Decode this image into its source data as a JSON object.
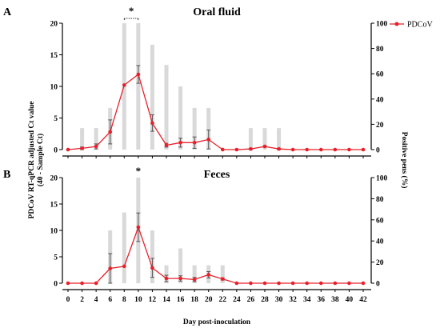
{
  "chart_data": [
    {
      "type": "bar",
      "panel_label": "A",
      "title": "Oral fluid",
      "x": [
        0,
        2,
        4,
        6,
        8,
        10,
        12,
        14,
        16,
        18,
        20,
        22,
        24,
        26,
        28,
        30,
        32,
        34,
        36,
        38,
        40,
        42
      ],
      "xlim": [
        0,
        42
      ],
      "ylim": [
        0,
        20
      ],
      "yticks": [
        0,
        5,
        10,
        15,
        20
      ],
      "y2lim": [
        0,
        100
      ],
      "y2ticks": [
        0,
        20,
        40,
        60,
        80,
        100
      ],
      "legend": {
        "position": "top-right"
      },
      "series": [
        {
          "name": "",
          "kind": "bar",
          "axis": "right",
          "color": "#d9d9d9",
          "values": [
            0,
            17,
            17,
            33,
            100,
            100,
            83,
            67,
            50,
            33,
            33,
            0,
            0,
            17,
            17,
            17,
            0,
            0,
            0,
            0,
            0,
            0
          ]
        },
        {
          "name": "PDCoV",
          "kind": "line",
          "axis": "left",
          "color": "#e8202a",
          "values": [
            0,
            0.2,
            0.5,
            2.8,
            10.2,
            11.9,
            4.2,
            0.7,
            1.1,
            1.1,
            1.6,
            0,
            0,
            0.1,
            0.5,
            0.1,
            0,
            0,
            0,
            0,
            0,
            0
          ],
          "error": [
            0,
            0.2,
            0.4,
            1.9,
            0,
            1.4,
            1.3,
            0.3,
            0.7,
            0.9,
            1.5,
            0,
            0,
            0.1,
            0.1,
            0.1,
            0,
            0,
            0,
            0,
            0,
            0
          ]
        }
      ],
      "annotations": [
        {
          "text": "*",
          "x_start": 8,
          "x_end": 10
        }
      ]
    },
    {
      "type": "bar",
      "panel_label": "B",
      "title": "Feces",
      "x": [
        0,
        2,
        4,
        6,
        8,
        10,
        12,
        14,
        16,
        18,
        20,
        22,
        24,
        26,
        28,
        30,
        32,
        34,
        36,
        38,
        40,
        42
      ],
      "xlim": [
        0,
        42
      ],
      "ylim": [
        0,
        20
      ],
      "yticks": [
        0,
        5,
        10,
        15,
        20
      ],
      "y2lim": [
        0,
        100
      ],
      "y2ticks": [
        0,
        20,
        40,
        60,
        80,
        100
      ],
      "series": [
        {
          "name": "",
          "kind": "bar",
          "axis": "right",
          "color": "#d9d9d9",
          "values": [
            0,
            0,
            0,
            50,
            67,
            100,
            50,
            17,
            33,
            17,
            17,
            17,
            0,
            0,
            0,
            0,
            0,
            0,
            0,
            0,
            0,
            0
          ]
        },
        {
          "name": "PDCoV",
          "kind": "line",
          "axis": "left",
          "color": "#e8202a",
          "values": [
            0,
            0,
            0,
            2.8,
            3.2,
            10.6,
            2.9,
            0.9,
            0.9,
            0.7,
            1.6,
            0.8,
            0,
            0,
            0,
            0,
            0,
            0,
            0,
            0,
            0,
            0
          ],
          "error": [
            0,
            0,
            0,
            2.8,
            0,
            2.7,
            1.8,
            0.6,
            0.5,
            0.4,
            0.6,
            0.2,
            0,
            0,
            0,
            0,
            0,
            0,
            0,
            0,
            0,
            0
          ]
        }
      ],
      "annotations": [
        {
          "text": "*",
          "x": 10
        }
      ]
    }
  ],
  "axes": {
    "ylabel_line1": "PDCoV  RT-qPCR adjusted Ct value",
    "ylabel_line2": "(40 - Sample Ct)",
    "y2label": "Positive pens (%)",
    "xlabel": "Day post-inoculation"
  }
}
